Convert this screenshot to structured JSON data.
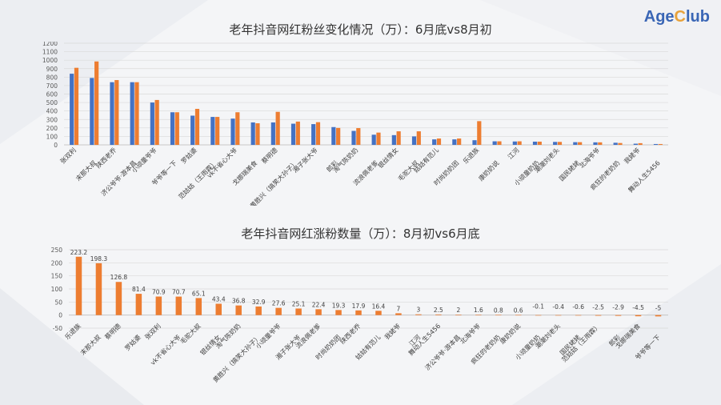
{
  "brand": {
    "logo_age": "Age",
    "logo_c": "C",
    "logo_lub": "lub"
  },
  "colors": {
    "june": "#4472c4",
    "aug": "#ed7d31",
    "gain": "#ed7d31"
  },
  "chart_data": [
    {
      "type": "bar",
      "title": "老年抖音网红粉丝变化情况（万）：6月底vs8月初",
      "ylim": [
        0,
        1200
      ],
      "yticks": [
        0,
        100,
        200,
        300,
        400,
        500,
        600,
        700,
        800,
        900,
        1000,
        1100,
        1200
      ],
      "grid": true,
      "categories": [
        "张双利",
        "末那大叔",
        "陕西老乔",
        "济公爷爷·游本昌",
        "小顽童爷爷",
        "爷爷等一下",
        "罗姑婆",
        "范姑姑（王雨霖）",
        "vk不省心大爷",
        "戈娜瑞美食",
        "蔡明德",
        "黄胜兴（搞笑大孙子）",
        "湘子张大爷",
        "郎彩",
        "淘气陈奶奶",
        "流浪佩老爹",
        "银丝情女",
        "毛驼大叔",
        "姑姑有范儿",
        "时尚奶奶团",
        "乐退族",
        "康奶奶说",
        "江河",
        "小顽童奶奶",
        "潮潮刘老头",
        "国民姥姥",
        "北海爷爷",
        "疯狂的老奶奶",
        "我姥爷",
        "舞动人生5456"
      ],
      "series": [
        {
          "values": [
            840,
            790,
            740,
            740,
            500,
            385,
            345,
            330,
            310,
            265,
            265,
            250,
            245,
            210,
            165,
            120,
            115,
            100,
            65,
            65,
            55,
            42,
            40,
            38,
            35,
            32,
            30,
            25,
            14,
            10
          ]
        },
        {
          "values": [
            910,
            985,
            765,
            740,
            530,
            385,
            425,
            330,
            385,
            255,
            390,
            275,
            268,
            200,
            198,
            145,
            160,
            160,
            75,
            75,
            280,
            42,
            42,
            38,
            35,
            32,
            30,
            22,
            20,
            10
          ]
        }
      ]
    },
    {
      "type": "bar",
      "title": "老年抖音网红涨粉数量（万）：8月初vs6月底",
      "ylim": [
        -50,
        250
      ],
      "yticks": [
        -50,
        0,
        50,
        100,
        150,
        200,
        250
      ],
      "grid": true,
      "categories": [
        "乐退族",
        "末那大叔",
        "蔡明德",
        "罗姑婆",
        "张双利",
        "vk不省心大爷",
        "毛驼大叔",
        "银丝情女",
        "淘气陈奶奶",
        "黄胜兴（搞笑大孙子）",
        "小顽童爷爷",
        "湘子张大爷",
        "流浪佩老爹",
        "时尚奶奶团",
        "陕西老乔",
        "姑姑有范儿",
        "我姥爷",
        "江河",
        "舞动人生5456",
        "济公爷爷·游本昌",
        "北海爷爷",
        "疯狂的老奶奶",
        "康奶奶说",
        "小顽童奶奶",
        "潮潮刘老头",
        "国民姥姥",
        "范姑姑（王雨霖）",
        "郎彩",
        "戈娜瑞美食",
        "爷爷等一下"
      ],
      "values": [
        223.2,
        198.3,
        126.8,
        81.4,
        70.9,
        70.7,
        65.1,
        43.4,
        36.8,
        32.9,
        27.6,
        25.1,
        22.4,
        19.3,
        17.9,
        16.4,
        7,
        3,
        2.5,
        2,
        1.6,
        0.8,
        0.6,
        -0.1,
        -0.4,
        -0.6,
        -2.5,
        -2.9,
        -4.5,
        -5
      ],
      "labels": [
        "223.2",
        "198.3",
        "126.8",
        "81.4",
        "70.9",
        "70.7",
        "65.1",
        "43.4",
        "36.8",
        "32.9",
        "27.6",
        "25.1",
        "22.4",
        "19.3",
        "17.9",
        "16.4",
        "7",
        "3",
        "2.5",
        "2",
        "1.6",
        "0.8",
        "0.6",
        "-0.1",
        "-0.4",
        "-0.6",
        "-2.5",
        "-2.9",
        "-4.5",
        "-5"
      ]
    }
  ]
}
